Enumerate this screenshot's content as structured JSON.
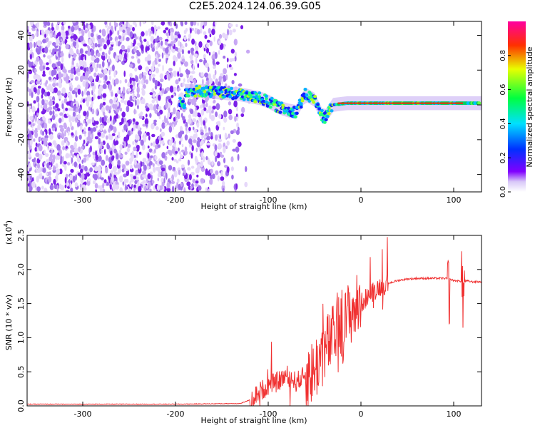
{
  "title": "C2E5.2024.124.06.39.G05",
  "chart_data": [
    {
      "type": "heatmap",
      "xlabel": "Height of straight line (km)",
      "ylabel": "Frequency (Hz)",
      "xlim": [
        -360,
        130
      ],
      "ylim": [
        -50,
        48
      ],
      "xticks": [
        "-300",
        "-200",
        "-100",
        "0",
        "100"
      ],
      "xtick_values": [
        -300,
        -200,
        -100,
        0,
        100
      ],
      "yticks": [
        "-40",
        "-20",
        "0",
        "20",
        "40"
      ],
      "ytick_values": [
        -40,
        -20,
        0,
        20,
        40
      ],
      "colorbar": {
        "label": "Normalized spectral amplitude",
        "ticks": [
          "0.0",
          "0.2",
          "0.4",
          "0.6",
          "0.8"
        ],
        "tick_values": [
          0,
          0.2,
          0.4,
          0.6,
          0.8
        ],
        "range": [
          0,
          1
        ]
      },
      "ridge": [
        {
          "x": -190,
          "y": 8
        },
        {
          "x": -170,
          "y": 8
        },
        {
          "x": -150,
          "y": 7
        },
        {
          "x": -130,
          "y": 6
        },
        {
          "x": -110,
          "y": 4
        },
        {
          "x": -100,
          "y": 2
        },
        {
          "x": -90,
          "y": -1
        },
        {
          "x": -80,
          "y": -3
        },
        {
          "x": -70,
          "y": -4
        },
        {
          "x": -60,
          "y": 6
        },
        {
          "x": -50,
          "y": 3
        },
        {
          "x": -40,
          "y": -8
        },
        {
          "x": -30,
          "y": 0
        },
        {
          "x": -15,
          "y": 1
        },
        {
          "x": 0,
          "y": 1
        },
        {
          "x": 50,
          "y": 1
        },
        {
          "x": 100,
          "y": 1
        },
        {
          "x": 130,
          "y": 1
        }
      ],
      "noise_region": {
        "x_from": -360,
        "x_to": -150,
        "y_from": -50,
        "y_to": 48
      }
    },
    {
      "type": "line",
      "xlabel": "Height of straight line (km)",
      "ylabel": "SNR (10 * v/v)",
      "y_multiplier": "(x10",
      "y_multiplier_exp": "4",
      "y_multiplier_close": ")",
      "xlim": [
        -360,
        130
      ],
      "ylim": [
        0,
        2.5
      ],
      "xticks": [
        "-300",
        "-200",
        "-100",
        "0",
        "100"
      ],
      "xtick_values": [
        -300,
        -200,
        -100,
        0,
        100
      ],
      "yticks": [
        "0.0",
        "0.5",
        "1.0",
        "1.5",
        "2.0",
        "2.5"
      ],
      "ytick_values": [
        0,
        0.5,
        1.0,
        1.5,
        2.0,
        2.5
      ],
      "color": "#f03030",
      "series": [
        {
          "x": [
            -360,
            -300,
            -200,
            -130,
            -120,
            -110,
            -100,
            -90,
            -80,
            -70,
            -60,
            -50,
            -45,
            -40,
            -35,
            -30,
            -25,
            -20,
            -15,
            -10,
            -5,
            0,
            10,
            20,
            30,
            40,
            50,
            60,
            70,
            80,
            90,
            95,
            100,
            105,
            110,
            115,
            120,
            130
          ],
          "y": [
            0.02,
            0.02,
            0.02,
            0.03,
            0.08,
            0.2,
            0.3,
            0.35,
            0.45,
            0.35,
            0.45,
            0.5,
            0.7,
            0.8,
            0.9,
            1.0,
            1.2,
            1.1,
            1.3,
            1.4,
            1.45,
            1.5,
            1.65,
            1.75,
            1.8,
            1.84,
            1.86,
            1.87,
            1.87,
            1.87,
            1.87,
            1.86,
            1.84,
            1.83,
            1.83,
            1.83,
            1.82,
            1.82
          ]
        }
      ]
    }
  ]
}
